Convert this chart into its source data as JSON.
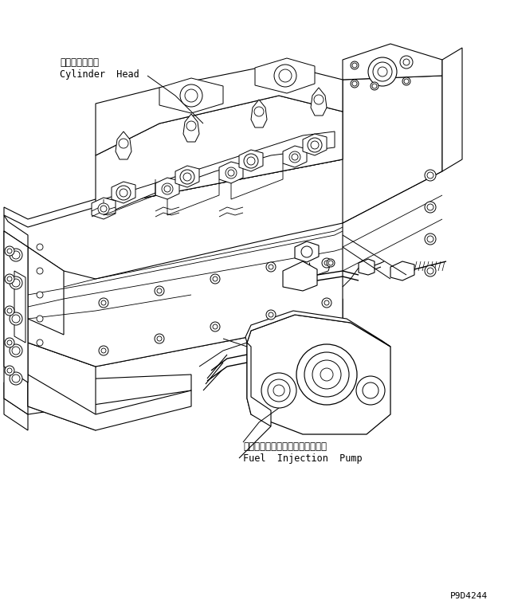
{
  "background_color": "#ffffff",
  "figsize": [
    6.35,
    7.63
  ],
  "dpi": 100,
  "label_cylinder_head_jp": "シリンダヘッド",
  "label_cylinder_head_en": "Cylinder  Head",
  "label_fuel_pump_jp": "フェエルインジェクションポンプ",
  "label_fuel_pump_en": "Fuel  Injection  Pump",
  "part_number": "P9D4244",
  "line_color": "#000000",
  "text_color": "#000000",
  "lw": 0.7
}
